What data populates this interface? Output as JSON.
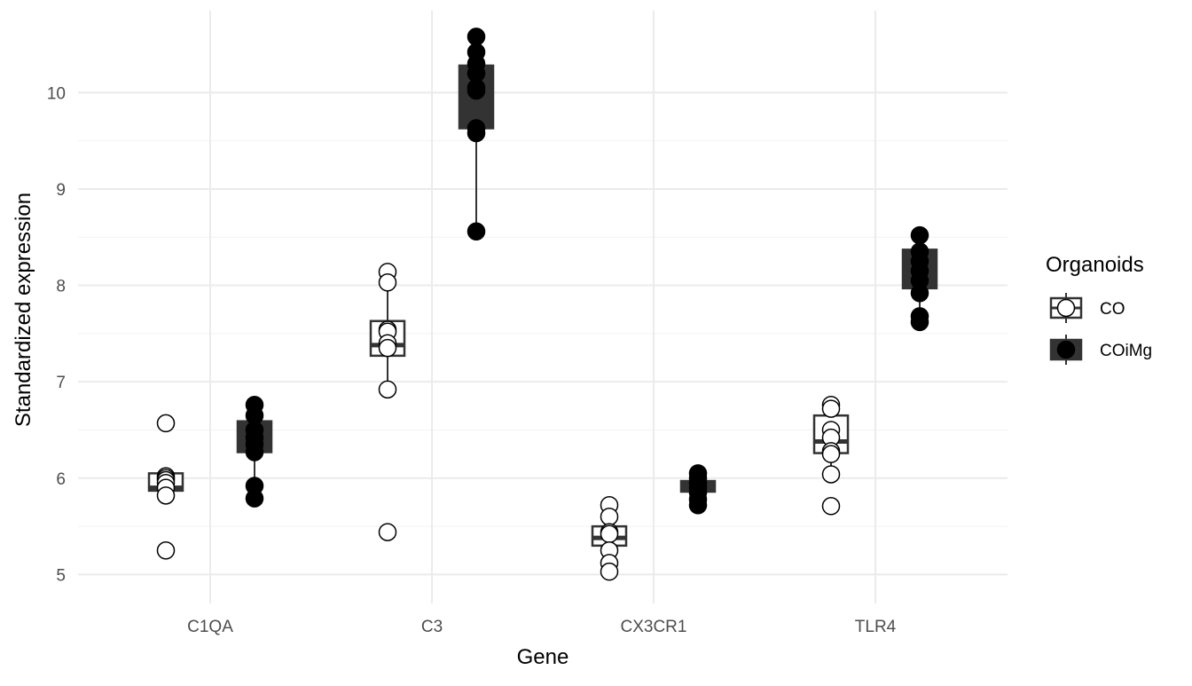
{
  "chart_data": {
    "type": "boxplot",
    "xlabel": "Gene",
    "ylabel": "Standardized expression",
    "categories": [
      "C1QA",
      "C3",
      "CX3CR1",
      "TLR4"
    ],
    "ylim": [
      4.7,
      10.85
    ],
    "yticks": [
      5,
      6,
      7,
      8,
      9,
      10
    ],
    "grid": true,
    "legend": {
      "title": "Organoids",
      "placement": "right",
      "entries": [
        "CO",
        "COiMg"
      ]
    },
    "series": [
      {
        "name": "CO",
        "fill": "#ffffff",
        "stroke": "#000000",
        "box_color": "#ffffff",
        "box_border": "#333333",
        "boxes": [
          {
            "category": "C1QA",
            "whisker_low": 5.82,
            "q1": 5.87,
            "median": 5.9,
            "q3": 6.05,
            "whisker_high": 6.1
          },
          {
            "category": "C3",
            "whisker_low": 6.92,
            "q1": 7.27,
            "median": 7.38,
            "q3": 7.63,
            "whisker_high": 8.14
          },
          {
            "category": "CX3CR1",
            "whisker_low": 5.03,
            "q1": 5.3,
            "median": 5.38,
            "q3": 5.5,
            "whisker_high": 5.72
          },
          {
            "category": "TLR4",
            "whisker_low": 6.04,
            "q1": 6.26,
            "median": 6.38,
            "q3": 6.65,
            "whisker_high": 6.76
          }
        ],
        "points": [
          {
            "category": "C1QA",
            "values": [
              6.57,
              6.02,
              6.0,
              5.98,
              5.95,
              5.9,
              5.82,
              5.25
            ]
          },
          {
            "category": "C3",
            "values": [
              8.14,
              8.03,
              7.54,
              7.52,
              7.4,
              7.35,
              6.92,
              5.44
            ]
          },
          {
            "category": "CX3CR1",
            "values": [
              5.72,
              5.6,
              5.44,
              5.42,
              5.25,
              5.12,
              5.03
            ]
          },
          {
            "category": "TLR4",
            "values": [
              6.76,
              6.72,
              6.5,
              6.42,
              6.28,
              6.25,
              6.04,
              5.71
            ]
          }
        ]
      },
      {
        "name": "COiMg",
        "fill": "#000000",
        "stroke": "#000000",
        "box_color": "#333333",
        "box_border": "#333333",
        "boxes": [
          {
            "category": "C1QA",
            "whisker_low": 5.79,
            "q1": 6.27,
            "median": 6.42,
            "q3": 6.59,
            "whisker_high": 6.76
          },
          {
            "category": "C3",
            "whisker_low": 8.56,
            "q1": 9.63,
            "median": 10.02,
            "q3": 10.28,
            "whisker_high": 10.58
          },
          {
            "category": "CX3CR1",
            "whisker_low": 5.72,
            "q1": 5.86,
            "median": 5.9,
            "q3": 5.97,
            "whisker_high": 6.05
          },
          {
            "category": "TLR4",
            "whisker_low": 7.62,
            "q1": 7.97,
            "median": 8.12,
            "q3": 8.37,
            "whisker_high": 8.52
          }
        ],
        "points": [
          {
            "category": "C1QA",
            "values": [
              6.76,
              6.65,
              6.5,
              6.42,
              6.35,
              6.27,
              5.92,
              5.79
            ]
          },
          {
            "category": "C3",
            "values": [
              10.58,
              10.42,
              10.3,
              10.2,
              10.05,
              10.02,
              9.63,
              9.58,
              8.56
            ]
          },
          {
            "category": "CX3CR1",
            "values": [
              6.05,
              6.0,
              5.95,
              5.9,
              5.85,
              5.78,
              5.72
            ]
          },
          {
            "category": "TLR4",
            "values": [
              8.52,
              8.35,
              8.25,
              8.15,
              8.05,
              7.92,
              7.68,
              7.62
            ]
          }
        ]
      }
    ]
  }
}
